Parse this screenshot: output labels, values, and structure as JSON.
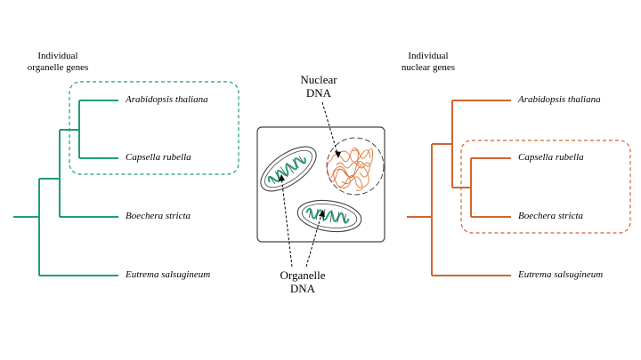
{
  "left_tree": {
    "title_line1": "Individual",
    "title_line2": "organelle genes",
    "color": "#1f9e74",
    "species": [
      "Arabidopsis thaliana",
      "Capsella rubella",
      "Boechera stricta",
      "Eutrema salsugineum"
    ]
  },
  "right_tree": {
    "title_line1": "Individual",
    "title_line2": "nuclear genes",
    "color": "#d2642e",
    "species": [
      "Arabidopsis thaliana",
      "Capsella rubella",
      "Boechera stricta",
      "Eutrema salsugineum"
    ]
  },
  "cell": {
    "nuclear_label_line1": "Nuclear",
    "nuclear_label_line2": "DNA",
    "organelle_label_line1": "Organelle",
    "organelle_label_line2": "DNA",
    "nuclear_dna_color": "#e0733a",
    "organelle_dna_color": "#2aa57a",
    "outline_color": "#444444"
  }
}
